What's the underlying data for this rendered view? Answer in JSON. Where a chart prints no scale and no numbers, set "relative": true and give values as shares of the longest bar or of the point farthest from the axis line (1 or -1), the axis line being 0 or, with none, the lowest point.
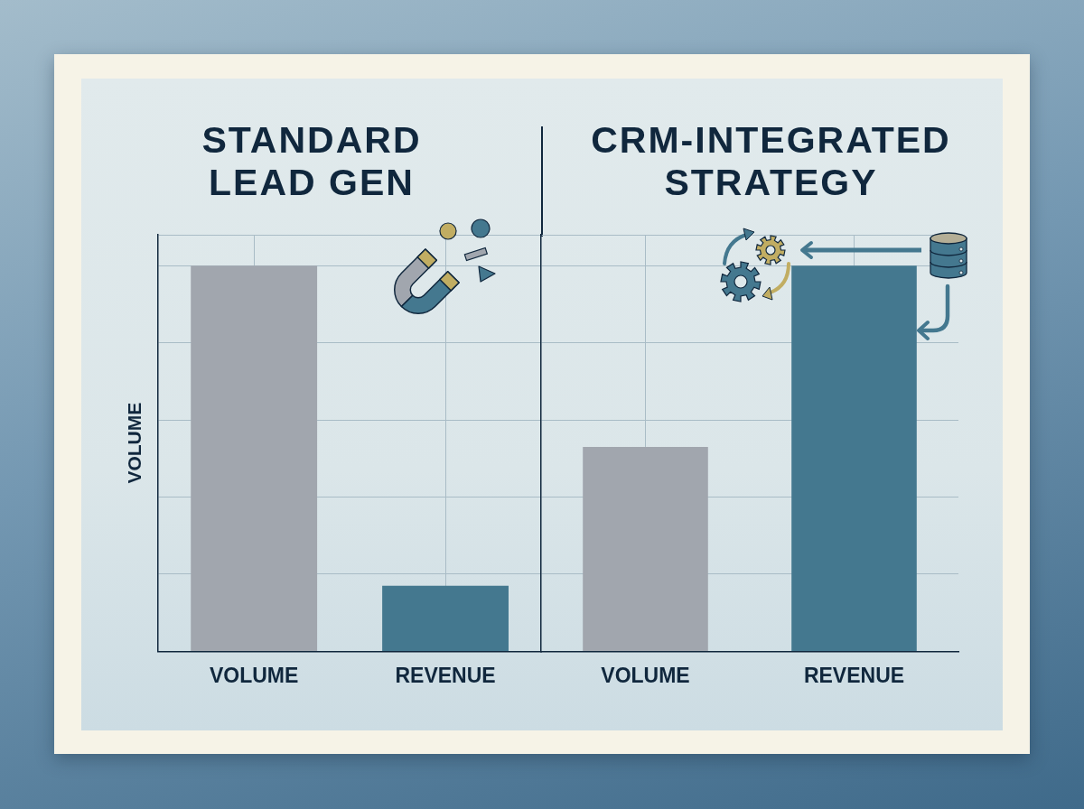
{
  "chart_data": [
    {
      "type": "bar",
      "title": "STANDARD LEAD GEN",
      "ylabel": "VOLUME",
      "categories": [
        "VOLUME",
        "REVENUE"
      ],
      "values": [
        1,
        0.17
      ],
      "colors": [
        "#a1a6ae",
        "#44788f"
      ],
      "relative": true,
      "grid": true
    },
    {
      "type": "bar",
      "title": "CRM-INTEGRATED STRATEGY",
      "categories": [
        "VOLUME",
        "REVENUE"
      ],
      "values": [
        0.53,
        1
      ],
      "colors": [
        "#a1a6ae",
        "#44788f"
      ],
      "relative": true,
      "grid": true
    }
  ]
}
